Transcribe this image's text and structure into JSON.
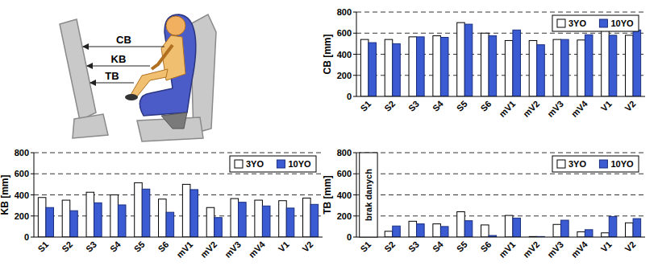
{
  "diagram": {
    "labels": [
      "CB",
      "KB",
      "TB"
    ]
  },
  "chart_data": [
    {
      "type": "bar",
      "y_label": "CB [mm]",
      "categories": [
        "S1",
        "S2",
        "S3",
        "S4",
        "S5",
        "S6",
        "mV1",
        "mV2",
        "mV3",
        "mV4",
        "V1",
        "V2"
      ],
      "series": [
        {
          "name": "3YO",
          "color": "#ffffff",
          "values": [
            540,
            540,
            565,
            575,
            700,
            600,
            530,
            530,
            540,
            535,
            640,
            580
          ]
        },
        {
          "name": "10YO",
          "color": "#3a5bd1",
          "values": [
            510,
            500,
            565,
            560,
            685,
            575,
            630,
            490,
            540,
            585,
            580,
            630
          ]
        }
      ],
      "ylim": [
        0,
        800
      ],
      "yticks": [
        0,
        200,
        400,
        600,
        800
      ],
      "grid": true,
      "legend": "upper right"
    },
    {
      "type": "bar",
      "y_label": "KB [mm]",
      "categories": [
        "S1",
        "S2",
        "S3",
        "S4",
        "S5",
        "S6",
        "mV1",
        "mV2",
        "mV3",
        "mV4",
        "V1",
        "V2"
      ],
      "series": [
        {
          "name": "3YO",
          "color": "#ffffff",
          "values": [
            375,
            350,
            425,
            400,
            515,
            360,
            500,
            280,
            365,
            350,
            345,
            370
          ]
        },
        {
          "name": "10YO",
          "color": "#3a5bd1",
          "values": [
            280,
            250,
            325,
            305,
            455,
            235,
            450,
            185,
            330,
            295,
            275,
            310
          ]
        }
      ],
      "ylim": [
        0,
        800
      ],
      "yticks": [
        0,
        200,
        400,
        600,
        800
      ],
      "grid": true,
      "legend": "upper right"
    },
    {
      "type": "bar",
      "y_label": "TB [mm]",
      "categories": [
        "S1",
        "S2",
        "S3",
        "S4",
        "S5",
        "S6",
        "mV1",
        "mV2",
        "mV3",
        "mV4",
        "V1",
        "V2"
      ],
      "series": [
        {
          "name": "3YO",
          "color": "#ffffff",
          "values": [
            null,
            55,
            150,
            125,
            240,
            115,
            205,
            5,
            120,
            50,
            40,
            135
          ]
        },
        {
          "name": "10YO",
          "color": "#3a5bd1",
          "values": [
            null,
            105,
            125,
            100,
            155,
            15,
            180,
            5,
            160,
            70,
            195,
            175
          ]
        }
      ],
      "annotations": [
        {
          "text": "brak danych",
          "x": "S1"
        }
      ],
      "ylim": [
        0,
        800
      ],
      "yticks": [
        0,
        200,
        400,
        600,
        800
      ],
      "grid": true,
      "legend": "upper right"
    }
  ]
}
